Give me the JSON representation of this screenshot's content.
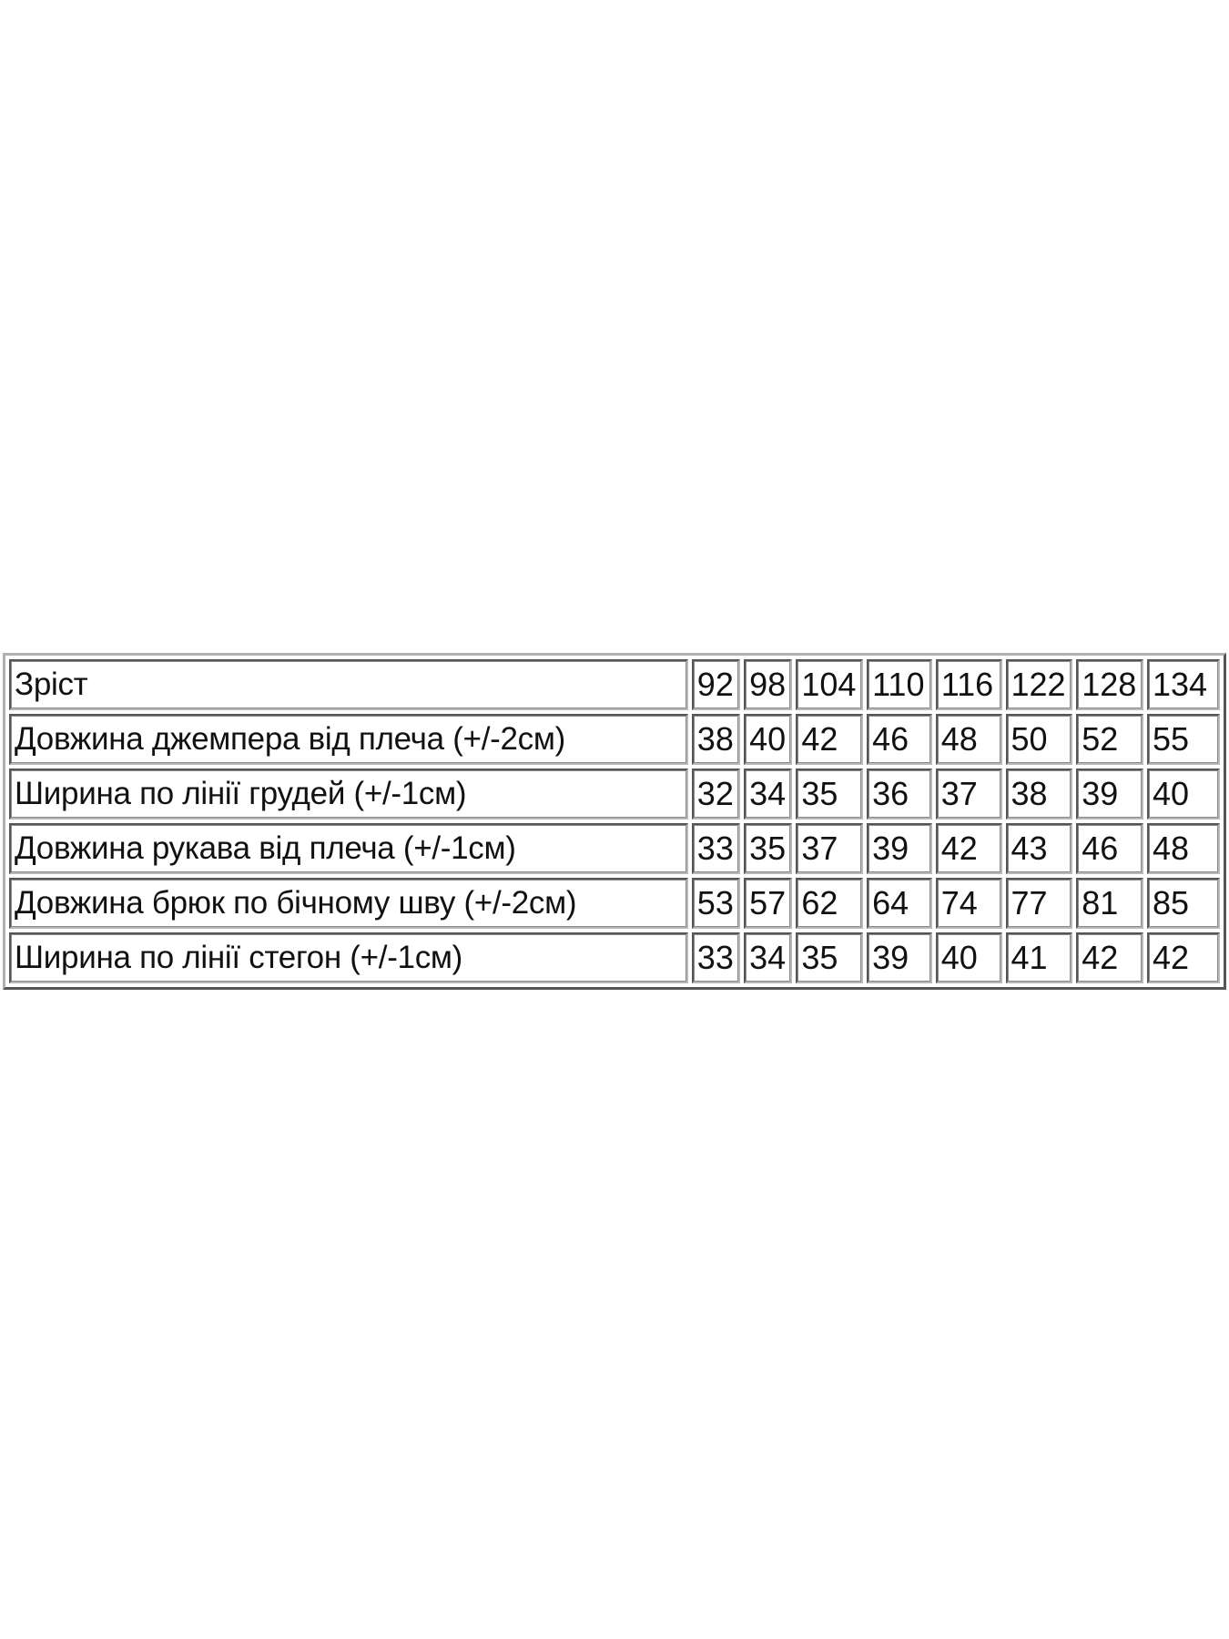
{
  "table": {
    "header": {
      "label": "Зріст",
      "sizes": [
        "92",
        "98",
        "104",
        "110",
        "116",
        "122",
        "128",
        "134"
      ]
    },
    "rows": [
      {
        "label": "Довжина джемпера  від плеча (+/-2см)",
        "values": [
          "38",
          "40",
          "42",
          "46",
          "48",
          "50",
          "52",
          "55"
        ]
      },
      {
        "label": "Ширина по лінії грудей (+/-1см)",
        "values": [
          "32",
          "34",
          "35",
          "36",
          "37",
          "38",
          "39",
          "40"
        ]
      },
      {
        "label": "Довжина рукава від плеча (+/-1см)",
        "values": [
          "33",
          "35",
          "37",
          "39",
          "42",
          "43",
          "46",
          "48"
        ]
      },
      {
        "label": "Довжина брюк по бічному шву (+/-2см)",
        "values": [
          "53",
          "57",
          "62",
          "64",
          "74",
          "77",
          "81",
          "85"
        ]
      },
      {
        "label": "Ширина по лінії стегон (+/-1см)",
        "values": [
          "33",
          "34",
          "35",
          "39",
          "40",
          "41",
          "42",
          "42"
        ]
      }
    ]
  }
}
